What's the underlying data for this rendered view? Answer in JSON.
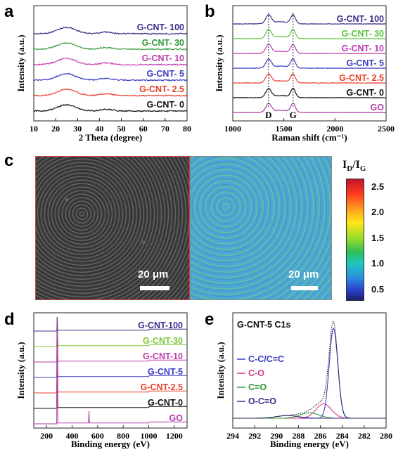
{
  "panel_labels": {
    "a": "a",
    "b": "b",
    "c": "c",
    "d": "d",
    "e": "e"
  },
  "colors": {
    "G-CNT-100": "#3a2f8a",
    "G-CNT-30": "#2e9a3a",
    "G-CNT-10": "#c03ab0",
    "G-CNT-5": "#3b3bc4",
    "G-CNT-2.5": "#e8412a",
    "G-CNT-0": "#111111",
    "GO": "#b03aa8"
  },
  "chart_data": [
    {
      "panel": "a",
      "type": "line",
      "xlabel": "2 Theta (degree)",
      "ylabel": "Intensity (a.u.)",
      "xlim": [
        10,
        80
      ],
      "xticks": [
        "10",
        "20",
        "30",
        "40",
        "50",
        "60",
        "70",
        "80"
      ],
      "peak_center": 25,
      "series": [
        {
          "name": "G-CNT- 100",
          "label": "G-CNT- 100",
          "color": "#3a2f8a"
        },
        {
          "name": "G-CNT- 30",
          "label": "G-CNT- 30",
          "color": "#2e9a3a"
        },
        {
          "name": "G-CNT- 10",
          "label": "G-CNT- 10",
          "color": "#c03ab0"
        },
        {
          "name": "G-CNT- 5",
          "label": "G-CNT- 5",
          "color": "#3b3bc4"
        },
        {
          "name": "G-CNT- 2.5",
          "label": "G-CNT- 2.5",
          "color": "#e8412a"
        },
        {
          "name": "G-CNT- 0",
          "label": "G-CNT- 0",
          "color": "#111111"
        }
      ]
    },
    {
      "panel": "b",
      "type": "line",
      "xlabel": "Raman shift (cm⁻¹)",
      "ylabel": "Intensity (a.u.)",
      "xlim": [
        1000,
        2500
      ],
      "xticks": [
        "1000",
        "1500",
        "2000",
        "2500"
      ],
      "peaks": [
        {
          "label": "D",
          "x": 1350
        },
        {
          "label": "G",
          "x": 1590
        }
      ],
      "series": [
        {
          "name": "G-CNT- 100",
          "label": "G-CNT- 100",
          "color": "#3a2f8a"
        },
        {
          "name": "G-CNT- 30",
          "label": "G-CNT- 30",
          "color": "#5cc23a"
        },
        {
          "name": "G-CNT- 10",
          "label": "G-CNT- 10",
          "color": "#c03ab0"
        },
        {
          "name": "G-CNT- 5",
          "label": "G-CNT- 5",
          "color": "#3b3bc4"
        },
        {
          "name": "G-CNT- 2.5",
          "label": "G-CNT- 2.5",
          "color": "#e8412a"
        },
        {
          "name": "G-CNT- 0",
          "label": "G-CNT- 0",
          "color": "#111111"
        },
        {
          "name": "GO",
          "label": "GO",
          "color": "#b03aa8"
        }
      ]
    },
    {
      "panel": "c",
      "type": "heatmap",
      "colorbar_title_main": "I",
      "colorbar_title_sub1": "D",
      "colorbar_title_sep": "/I",
      "colorbar_title_sub2": "G",
      "colorbar_ticks": [
        "2.5",
        "2.0",
        "1.5",
        "1.0",
        "0.5"
      ],
      "colorbar_range": [
        0.4,
        2.7
      ],
      "scalebar_label_left": "20 μm",
      "scalebar_label_right": "20 μm"
    },
    {
      "panel": "d",
      "type": "line",
      "xlabel": "Binding energy (eV)",
      "ylabel": "Intensity (a.u.)",
      "xlim": [
        100,
        1300
      ],
      "xticks": [
        "200",
        "400",
        "600",
        "800",
        "1000",
        "1200"
      ],
      "peaks": [
        285,
        532
      ],
      "series": [
        {
          "name": "G-CNT-100",
          "label": "G-CNT-100",
          "color": "#3a2f8a"
        },
        {
          "name": "G-CNT-30",
          "label": "G-CNT-30",
          "color": "#7cc83a"
        },
        {
          "name": "G-CNT-10",
          "label": "G-CNT-10",
          "color": "#c03ab0"
        },
        {
          "name": "G-CNT-5",
          "label": "G-CNT-5",
          "color": "#3b3bc4"
        },
        {
          "name": "G-CNT-2.5",
          "label": "G-CNT-2.5",
          "color": "#e8412a"
        },
        {
          "name": "G-CNT-0",
          "label": "G-CNT-0",
          "color": "#111111"
        },
        {
          "name": "GO",
          "label": "GO",
          "color": "#b03aa8"
        }
      ]
    },
    {
      "panel": "e",
      "type": "line",
      "title": "G-CNT-5  C1s",
      "xlabel": "Binding energy (eV)",
      "ylabel": "Intensity (a.u.)",
      "xlim": [
        294,
        280
      ],
      "xticks": [
        "294",
        "292",
        "290",
        "288",
        "286",
        "284",
        "282",
        "280"
      ],
      "series": [
        {
          "name": "C-C/C=C",
          "label": "C-C/C=C",
          "color": "#3b3bc4",
          "center": 284.8,
          "amp": 1.0,
          "width": 0.55
        },
        {
          "name": "C-O",
          "label": "C-O",
          "color": "#d23a8a",
          "center": 285.7,
          "amp": 0.16,
          "width": 1.0
        },
        {
          "name": "C=O",
          "label": "C=O",
          "color": "#2e9a3a",
          "center": 287.0,
          "amp": 0.06,
          "width": 1.2
        },
        {
          "name": "O-C=O",
          "label": "O-C=O",
          "color": "#3a2f8a",
          "center": 289.0,
          "amp": 0.03,
          "width": 1.4
        }
      ]
    }
  ]
}
